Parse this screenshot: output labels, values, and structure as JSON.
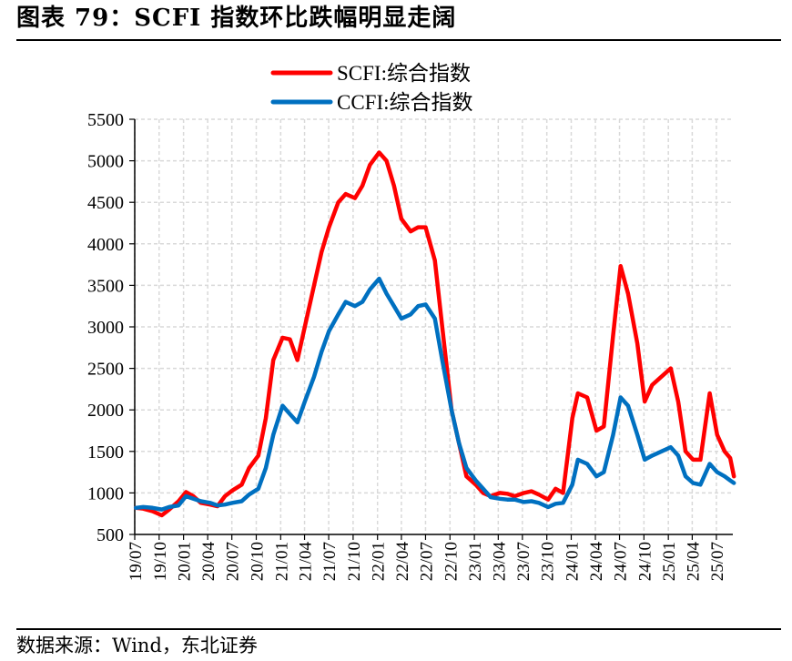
{
  "header": {
    "title": "图表 79：SCFI 指数环比跌幅明显走阔"
  },
  "footer": {
    "source": "数据来源：Wind，东北证券"
  },
  "chart_data": {
    "type": "line",
    "title": "",
    "xlabel": "",
    "ylabel": "",
    "ylim": [
      500,
      5500
    ],
    "yticks": [
      500,
      1000,
      1500,
      2000,
      2500,
      3000,
      3500,
      4000,
      4500,
      5000,
      5500
    ],
    "xlim": [
      "2019-07",
      "2025-09"
    ],
    "xticks": [
      "19/07",
      "19/10",
      "20/01",
      "20/04",
      "20/07",
      "20/10",
      "21/01",
      "21/04",
      "21/07",
      "21/10",
      "22/01",
      "22/04",
      "22/07",
      "22/10",
      "23/01",
      "23/04",
      "23/07",
      "23/10",
      "24/01",
      "24/04",
      "24/07",
      "24/10",
      "25/01",
      "25/04",
      "25/07"
    ],
    "grid": true,
    "legend_position": "top-center",
    "series": [
      {
        "name": "SCFI:综合指数",
        "color": "#ff0000",
        "points": [
          [
            "2019-07-05",
            820
          ],
          [
            "2019-08-02",
            810
          ],
          [
            "2019-09-06",
            780
          ],
          [
            "2019-10-11",
            730
          ],
          [
            "2019-11-08",
            800
          ],
          [
            "2019-12-13",
            900
          ],
          [
            "2020-01-10",
            1010
          ],
          [
            "2020-02-07",
            960
          ],
          [
            "2020-03-06",
            880
          ],
          [
            "2020-04-10",
            860
          ],
          [
            "2020-05-08",
            840
          ],
          [
            "2020-06-05",
            960
          ],
          [
            "2020-07-03",
            1030
          ],
          [
            "2020-08-07",
            1100
          ],
          [
            "2020-09-04",
            1300
          ],
          [
            "2020-10-09",
            1450
          ],
          [
            "2020-11-06",
            1900
          ],
          [
            "2020-12-04",
            2600
          ],
          [
            "2021-01-08",
            2870
          ],
          [
            "2021-02-05",
            2850
          ],
          [
            "2021-03-05",
            2600
          ],
          [
            "2021-04-02",
            3000
          ],
          [
            "2021-05-07",
            3500
          ],
          [
            "2021-06-04",
            3900
          ],
          [
            "2021-07-02",
            4200
          ],
          [
            "2021-08-06",
            4500
          ],
          [
            "2021-09-03",
            4600
          ],
          [
            "2021-10-08",
            4550
          ],
          [
            "2021-11-05",
            4700
          ],
          [
            "2021-12-03",
            4950
          ],
          [
            "2022-01-07",
            5100
          ],
          [
            "2022-02-04",
            5000
          ],
          [
            "2022-03-04",
            4700
          ],
          [
            "2022-04-01",
            4300
          ],
          [
            "2022-05-06",
            4150
          ],
          [
            "2022-06-03",
            4200
          ],
          [
            "2022-07-01",
            4200
          ],
          [
            "2022-08-05",
            3800
          ],
          [
            "2022-09-02",
            3000
          ],
          [
            "2022-10-07",
            2000
          ],
          [
            "2022-11-04",
            1600
          ],
          [
            "2022-12-02",
            1200
          ],
          [
            "2023-01-06",
            1100
          ],
          [
            "2023-02-03",
            1000
          ],
          [
            "2023-03-03",
            960
          ],
          [
            "2023-04-07",
            1000
          ],
          [
            "2023-05-05",
            990
          ],
          [
            "2023-06-02",
            960
          ],
          [
            "2023-07-07",
            1000
          ],
          [
            "2023-08-04",
            1020
          ],
          [
            "2023-09-01",
            980
          ],
          [
            "2023-10-06",
            920
          ],
          [
            "2023-11-03",
            1050
          ],
          [
            "2023-12-01",
            1000
          ],
          [
            "2024-01-05",
            1900
          ],
          [
            "2024-01-26",
            2200
          ],
          [
            "2024-03-01",
            2150
          ],
          [
            "2024-04-05",
            1750
          ],
          [
            "2024-05-03",
            1800
          ],
          [
            "2024-06-07",
            2900
          ],
          [
            "2024-07-05",
            3733
          ],
          [
            "2024-08-02",
            3400
          ],
          [
            "2024-09-06",
            2800
          ],
          [
            "2024-10-04",
            2100
          ],
          [
            "2024-11-01",
            2300
          ],
          [
            "2024-12-06",
            2400
          ],
          [
            "2025-01-10",
            2500
          ],
          [
            "2025-02-07",
            2100
          ],
          [
            "2025-03-07",
            1500
          ],
          [
            "2025-04-04",
            1400
          ],
          [
            "2025-05-02",
            1400
          ],
          [
            "2025-06-06",
            2200
          ],
          [
            "2025-07-04",
            1700
          ],
          [
            "2025-08-01",
            1500
          ],
          [
            "2025-08-22",
            1420
          ],
          [
            "2025-09-05",
            1200
          ]
        ]
      },
      {
        "name": "CCFI:综合指数",
        "color": "#0070c0",
        "points": [
          [
            "2019-07-05",
            820
          ],
          [
            "2019-08-02",
            830
          ],
          [
            "2019-09-06",
            820
          ],
          [
            "2019-10-11",
            800
          ],
          [
            "2019-11-08",
            830
          ],
          [
            "2019-12-13",
            850
          ],
          [
            "2020-01-10",
            960
          ],
          [
            "2020-02-07",
            930
          ],
          [
            "2020-03-06",
            900
          ],
          [
            "2020-04-10",
            880
          ],
          [
            "2020-05-08",
            850
          ],
          [
            "2020-06-05",
            860
          ],
          [
            "2020-07-03",
            880
          ],
          [
            "2020-08-07",
            900
          ],
          [
            "2020-09-04",
            980
          ],
          [
            "2020-10-09",
            1050
          ],
          [
            "2020-11-06",
            1300
          ],
          [
            "2020-12-04",
            1700
          ],
          [
            "2021-01-08",
            2050
          ],
          [
            "2021-02-05",
            1950
          ],
          [
            "2021-03-05",
            1850
          ],
          [
            "2021-04-02",
            2100
          ],
          [
            "2021-05-07",
            2400
          ],
          [
            "2021-06-04",
            2700
          ],
          [
            "2021-07-02",
            2950
          ],
          [
            "2021-08-06",
            3150
          ],
          [
            "2021-09-03",
            3300
          ],
          [
            "2021-10-08",
            3250
          ],
          [
            "2021-11-05",
            3300
          ],
          [
            "2021-12-03",
            3450
          ],
          [
            "2022-01-07",
            3580
          ],
          [
            "2022-02-04",
            3400
          ],
          [
            "2022-03-04",
            3250
          ],
          [
            "2022-04-01",
            3100
          ],
          [
            "2022-05-06",
            3150
          ],
          [
            "2022-06-03",
            3250
          ],
          [
            "2022-07-01",
            3270
          ],
          [
            "2022-08-05",
            3100
          ],
          [
            "2022-09-02",
            2600
          ],
          [
            "2022-10-07",
            2000
          ],
          [
            "2022-11-04",
            1600
          ],
          [
            "2022-12-02",
            1300
          ],
          [
            "2023-01-06",
            1150
          ],
          [
            "2023-02-03",
            1050
          ],
          [
            "2023-03-03",
            950
          ],
          [
            "2023-04-07",
            930
          ],
          [
            "2023-05-05",
            920
          ],
          [
            "2023-06-02",
            920
          ],
          [
            "2023-07-07",
            890
          ],
          [
            "2023-08-04",
            900
          ],
          [
            "2023-09-01",
            880
          ],
          [
            "2023-10-06",
            830
          ],
          [
            "2023-11-03",
            870
          ],
          [
            "2023-12-01",
            880
          ],
          [
            "2024-01-05",
            1100
          ],
          [
            "2024-01-26",
            1400
          ],
          [
            "2024-03-01",
            1350
          ],
          [
            "2024-04-05",
            1200
          ],
          [
            "2024-05-03",
            1250
          ],
          [
            "2024-06-07",
            1700
          ],
          [
            "2024-07-05",
            2150
          ],
          [
            "2024-08-02",
            2050
          ],
          [
            "2024-09-06",
            1700
          ],
          [
            "2024-10-04",
            1400
          ],
          [
            "2024-11-01",
            1450
          ],
          [
            "2024-12-06",
            1500
          ],
          [
            "2025-01-10",
            1550
          ],
          [
            "2025-02-07",
            1450
          ],
          [
            "2025-03-07",
            1200
          ],
          [
            "2025-04-04",
            1120
          ],
          [
            "2025-05-02",
            1100
          ],
          [
            "2025-06-06",
            1350
          ],
          [
            "2025-07-04",
            1250
          ],
          [
            "2025-08-01",
            1200
          ],
          [
            "2025-08-22",
            1150
          ],
          [
            "2025-09-05",
            1120
          ]
        ]
      }
    ]
  }
}
